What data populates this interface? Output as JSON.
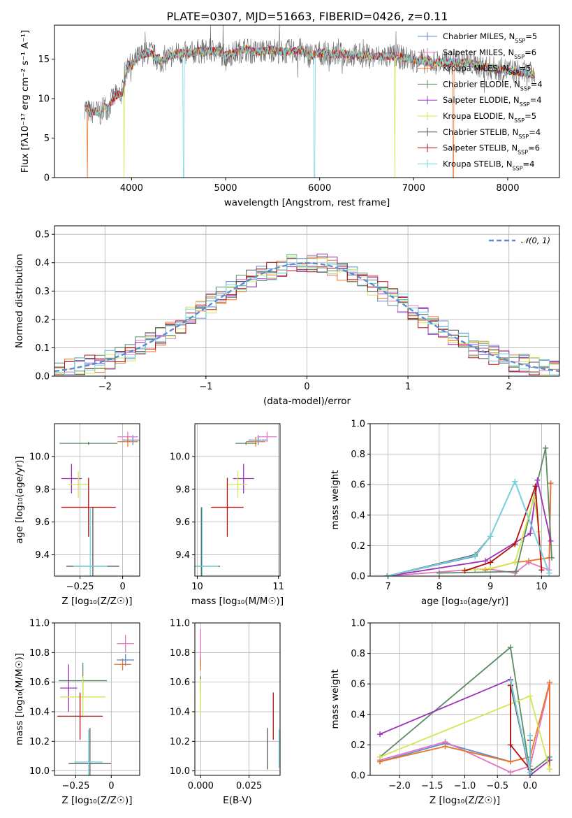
{
  "title": "PLATE=0307, MJD=51663, FIBERID=0426, z=0.11",
  "colors": {
    "Chabrier MILES": "#5b8bd0",
    "Salpeter MILES": "#e377c2",
    "Kroupa MILES": "#e8762c",
    "Chabrier ELODIE": "#5b8c63",
    "Salpeter ELODIE": "#9b30b8",
    "Kroupa ELODIE": "#d4e651",
    "Chabrier STELIB": "#555555",
    "Salpeter STELIB": "#b30f0f",
    "Kroupa STELIB": "#72d6dc"
  },
  "chart_data": [
    {
      "id": "spectrum",
      "type": "line",
      "xlabel": "wavelength [Angstrom, rest frame]",
      "ylabel": "Flux [fλ10⁻¹⁷ erg cm⁻² s⁻¹ A⁻¹]",
      "xlim": [
        3180,
        8550
      ],
      "ylim": [
        0,
        19.3
      ],
      "xticks": [
        4000,
        5000,
        6000,
        7000,
        8000
      ],
      "yticks": [
        0,
        5,
        10,
        15
      ],
      "grid": false,
      "legend_position": "right",
      "legend": [
        "Chabrier MILES, N_SSP=5",
        "Salpeter MILES, N_SSP=6",
        "Kroupa MILES, N_SSP=5",
        "Chabrier ELODIE, N_SSP=4",
        "Salpeter ELODIE, N_SSP=4",
        "Kroupa ELODIE, N_SSP=5",
        "Chabrier STELIB, N_SSP=4",
        "Salpeter STELIB, N_SSP=6",
        "Kroupa STELIB, N_SSP=4"
      ],
      "data_x": [
        3500,
        3560,
        3620,
        3680,
        3700,
        3750,
        3800,
        3850,
        3900,
        3960,
        4000,
        4050,
        4100,
        4200,
        4300,
        4400,
        4500,
        4600,
        4700,
        4800,
        4900,
        5000,
        5100,
        5200,
        5300,
        5400,
        5500,
        5600,
        5700,
        5800,
        5900,
        6000,
        6200,
        6400,
        6600,
        6800,
        7000,
        7200,
        7400,
        7600,
        7800,
        8000,
        8200,
        8290
      ],
      "data_y": [
        9.0,
        8.2,
        8.4,
        8.0,
        9.2,
        8.7,
        10.0,
        10.5,
        10.7,
        14.4,
        14.0,
        15.0,
        15.5,
        15.9,
        14.7,
        15.3,
        15.8,
        15.6,
        16.0,
        16.0,
        16.1,
        15.5,
        15.8,
        16.3,
        15.9,
        16.0,
        16.2,
        15.9,
        16.0,
        16.1,
        15.4,
        15.8,
        15.6,
        15.5,
        15.3,
        15.4,
        14.9,
        14.6,
        14.6,
        14.5,
        13.9,
        13.6,
        13.2,
        13.0
      ],
      "dips": [
        {
          "series": "Kroupa MILES",
          "x": 3530
        },
        {
          "series": "Kroupa ELODIE",
          "x": 3920
        },
        {
          "series": "Kroupa STELIB",
          "x": 4555
        },
        {
          "series": "Kroupa STELIB",
          "x": 5945
        },
        {
          "series": "Kroupa ELODIE",
          "x": 6800
        },
        {
          "series": "Kroupa MILES",
          "x": 7420
        }
      ]
    },
    {
      "id": "residuals",
      "type": "line",
      "xlabel": "(data-model)/error",
      "ylabel": "Normed distribution",
      "xlim": [
        -2.5,
        2.5
      ],
      "ylim": [
        0,
        0.53
      ],
      "xticks": [
        -2,
        -1,
        0,
        1,
        2
      ],
      "yticks": [
        0.0,
        0.1,
        0.2,
        0.3,
        0.4,
        0.5
      ],
      "grid": true,
      "legend_position": "top-right",
      "legend": [
        "𝒩(0, 1)"
      ],
      "bins": {
        "start": -2.5,
        "width": 0.1,
        "count": 50
      },
      "reference_curve": {
        "name": "𝒩(0, 1)",
        "mean": 0,
        "sigma": 1,
        "style": "dashed"
      }
    },
    {
      "id": "age_vs_Z",
      "type": "scatter",
      "xlabel": "Z [log₁₀(Z/Z☉)]",
      "ylabel": "age  [log₁₀(age/yr)]",
      "xlim": [
        -0.4,
        0.1
      ],
      "ylim": [
        9.27,
        10.2
      ],
      "xticks": [
        -0.25,
        0.0
      ],
      "yticks": [
        9.4,
        9.6,
        9.8,
        10.0
      ],
      "grid": true,
      "points": [
        {
          "series": "Chabrier MILES",
          "x": 0.06,
          "y": 10.1,
          "xerr": 0.06,
          "yerr": 0.03
        },
        {
          "series": "Salpeter MILES",
          "x": 0.03,
          "y": 10.12,
          "xerr": 0.06,
          "yerr": 0.03
        },
        {
          "series": "Kroupa MILES",
          "x": 0.03,
          "y": 10.09,
          "xerr": 0.06,
          "yerr": 0.03
        },
        {
          "series": "Chabrier ELODIE",
          "x": -0.2,
          "y": 10.08,
          "xerr": 0.17,
          "yerr": 0.01
        },
        {
          "series": "Salpeter ELODIE",
          "x": -0.3,
          "y": 9.865,
          "xerr": 0.06,
          "yerr": 0.09
        },
        {
          "series": "Kroupa ELODIE",
          "x": -0.26,
          "y": 9.83,
          "xerr": 0.06,
          "yerr": 0.08
        },
        {
          "series": "Chabrier STELIB",
          "x": -0.175,
          "y": 9.33,
          "xerr": 0.155,
          "yerr": 0.36
        },
        {
          "series": "Salpeter STELIB",
          "x": -0.2,
          "y": 9.69,
          "xerr": 0.16,
          "yerr": 0.18
        },
        {
          "series": "Kroupa STELIB",
          "x": -0.19,
          "y": 9.33,
          "xerr": 0.1,
          "yerr": 0.36
        }
      ]
    },
    {
      "id": "age_vs_mass",
      "type": "scatter",
      "xlabel": "mass [log₁₀(M/M☉)]",
      "ylabel": "",
      "xlim": [
        9.97,
        11.02
      ],
      "ylim": [
        9.27,
        10.2
      ],
      "xticks": [
        10,
        11
      ],
      "yticks": [
        9.4,
        9.6,
        9.8,
        10.0
      ],
      "grid": true,
      "points": [
        {
          "series": "Chabrier MILES",
          "x": 10.75,
          "y": 10.1,
          "xerr": 0.12,
          "yerr": 0.03
        },
        {
          "series": "Salpeter MILES",
          "x": 10.86,
          "y": 10.12,
          "xerr": 0.12,
          "yerr": 0.03
        },
        {
          "series": "Kroupa MILES",
          "x": 10.72,
          "y": 10.09,
          "xerr": 0.12,
          "yerr": 0.03
        },
        {
          "series": "Chabrier ELODIE",
          "x": 10.6,
          "y": 10.08,
          "xerr": 0.13,
          "yerr": 0.01
        },
        {
          "series": "Salpeter ELODIE",
          "x": 10.57,
          "y": 9.865,
          "xerr": 0.13,
          "yerr": 0.09
        },
        {
          "series": "Kroupa ELODIE",
          "x": 10.5,
          "y": 9.83,
          "xerr": 0.12,
          "yerr": 0.08
        },
        {
          "series": "Chabrier STELIB",
          "x": 10.05,
          "y": 9.33,
          "xerr": 0.23,
          "yerr": 0.36
        },
        {
          "series": "Salpeter STELIB",
          "x": 10.37,
          "y": 9.69,
          "xerr": 0.2,
          "yerr": 0.18
        },
        {
          "series": "Kroupa STELIB",
          "x": 10.06,
          "y": 9.33,
          "xerr": 0.2,
          "yerr": 0.36
        }
      ]
    },
    {
      "id": "weight_vs_age",
      "type": "line",
      "xlabel": "age  [log₁₀(age/yr)]",
      "ylabel": "mass weight",
      "xlim": [
        6.65,
        10.35
      ],
      "ylim": [
        0,
        1.0
      ],
      "xticks": [
        7,
        8,
        9,
        10
      ],
      "yticks": [
        0.0,
        0.2,
        0.4,
        0.6,
        0.8,
        1.0
      ],
      "grid": true,
      "series": [
        {
          "name": "Chabrier MILES",
          "x": [
            6.98,
            8.7,
            9.0,
            9.48,
            10.15
          ],
          "y": [
            0.0,
            0.13,
            0.26,
            0.62,
            0.02
          ]
        },
        {
          "name": "Salpeter MILES",
          "x": [
            6.98,
            8.7,
            9.0,
            9.48,
            9.75,
            10.15,
            10.18
          ],
          "y": [
            0.0,
            0.045,
            0.045,
            0.02,
            0.09,
            0.04,
            0.61
          ]
        },
        {
          "name": "Kroupa MILES",
          "x": [
            8.9,
            9.48,
            9.75,
            10.15,
            10.18
          ],
          "y": [
            0.04,
            0.09,
            0.1,
            0.12,
            0.61
          ]
        },
        {
          "name": "Chabrier ELODIE",
          "x": [
            8.0,
            9.5,
            10.08,
            10.2
          ],
          "y": [
            0.02,
            0.03,
            0.84,
            0.12
          ]
        },
        {
          "name": "Salpeter ELODIE",
          "x": [
            6.98,
            8.9,
            9.78,
            9.92,
            10.18
          ],
          "y": [
            0.0,
            0.1,
            0.28,
            0.63,
            0.23
          ]
        },
        {
          "name": "Kroupa ELODIE",
          "x": [
            8.5,
            9.0,
            9.48,
            9.86,
            9.95
          ],
          "y": [
            0.04,
            0.05,
            0.09,
            0.52,
            0.29
          ]
        },
        {
          "name": "Chabrier STELIB",
          "x": [
            6.98,
            8.7,
            9.0
          ],
          "y": [
            0.0,
            0.14,
            0.26
          ]
        },
        {
          "name": "Salpeter STELIB",
          "x": [
            8.5,
            9.0,
            9.48,
            9.88,
            10.0
          ],
          "y": [
            0.035,
            0.09,
            0.21,
            0.59,
            0.04
          ]
        },
        {
          "name": "Kroupa STELIB",
          "x": [
            6.98,
            8.7,
            9.0,
            9.48,
            10.15
          ],
          "y": [
            0.0,
            0.135,
            0.26,
            0.62,
            0.02
          ]
        }
      ]
    },
    {
      "id": "mass_vs_Z",
      "type": "scatter",
      "xlabel": "Z [log₁₀(Z/Z☉)]",
      "ylabel": "mass [log₁₀(M/M☉)]",
      "xlim": [
        -0.4,
        0.2
      ],
      "ylim": [
        9.97,
        11.0
      ],
      "xticks": [
        -0.25,
        0.0
      ],
      "yticks": [
        10.0,
        10.2,
        10.4,
        10.6,
        10.8,
        11.0
      ],
      "grid": true,
      "points": [
        {
          "series": "Chabrier MILES",
          "x": 0.1,
          "y": 10.75,
          "xerr": 0.06,
          "yerr": 0.04
        },
        {
          "series": "Salpeter MILES",
          "x": 0.1,
          "y": 10.86,
          "xerr": 0.06,
          "yerr": 0.06
        },
        {
          "series": "Kroupa MILES",
          "x": 0.08,
          "y": 10.72,
          "xerr": 0.06,
          "yerr": 0.04
        },
        {
          "series": "Chabrier ELODIE",
          "x": -0.2,
          "y": 10.61,
          "xerr": 0.17,
          "yerr": 0.12
        },
        {
          "series": "Salpeter ELODIE",
          "x": -0.3,
          "y": 10.56,
          "xerr": 0.06,
          "yerr": 0.16
        },
        {
          "series": "Kroupa ELODIE",
          "x": -0.2,
          "y": 10.5,
          "xerr": 0.16,
          "yerr": 0.14
        },
        {
          "series": "Chabrier STELIB",
          "x": -0.15,
          "y": 10.05,
          "xerr": 0.15,
          "yerr": 0.24
        },
        {
          "series": "Salpeter STELIB",
          "x": -0.22,
          "y": 10.37,
          "xerr": 0.16,
          "yerr": 0.16
        },
        {
          "series": "Kroupa STELIB",
          "x": -0.16,
          "y": 10.06,
          "xerr": 0.1,
          "yerr": 0.22
        }
      ]
    },
    {
      "id": "mass_vs_ebv",
      "type": "scatter",
      "xlabel": "E(B-V)",
      "ylabel": "",
      "xlim": [
        -0.003,
        0.041
      ],
      "ylim": [
        9.97,
        11.0
      ],
      "xticks": [
        0.0,
        0.025
      ],
      "xticklabels": [
        "0.000",
        "0.025"
      ],
      "yticks": [
        10.0,
        10.2,
        10.4,
        10.6,
        10.8,
        11.0
      ],
      "grid": true,
      "points": [
        {
          "series": "Chabrier MILES",
          "x": 0.0,
          "y": 10.75,
          "xerr": 0.0,
          "yerr": 0.04
        },
        {
          "series": "Salpeter MILES",
          "x": 0.0,
          "y": 10.86,
          "xerr": 0.0,
          "yerr": 0.1
        },
        {
          "series": "Kroupa MILES",
          "x": 0.0,
          "y": 10.72,
          "xerr": 0.0,
          "yerr": 0.04
        },
        {
          "series": "Chabrier ELODIE",
          "x": 0.0,
          "y": 10.61,
          "xerr": 0.0,
          "yerr": 0.03
        },
        {
          "series": "Salpeter ELODIE",
          "x": 0.0,
          "y": 10.56,
          "xerr": 0.0,
          "yerr": 0.03
        },
        {
          "series": "Kroupa ELODIE",
          "x": 0.0,
          "y": 10.5,
          "xerr": 0.0,
          "yerr": 0.12
        },
        {
          "series": "Chabrier STELIB",
          "x": 0.0345,
          "y": 10.15,
          "xerr": 0.0,
          "yerr": 0.14
        },
        {
          "series": "Salpeter STELIB",
          "x": 0.0375,
          "y": 10.37,
          "xerr": 0.0,
          "yerr": 0.16
        },
        {
          "series": "Kroupa STELIB",
          "x": 0.0405,
          "y": 10.15,
          "xerr": 0.0,
          "yerr": 0.13
        }
      ]
    },
    {
      "id": "weight_vs_Z",
      "type": "line",
      "xlabel": "Z [log₁₀(Z/Z☉)]",
      "ylabel": "mass weight",
      "xlim": [
        -2.45,
        0.45
      ],
      "ylim": [
        0,
        1.0
      ],
      "xticks": [
        -2.0,
        -1.5,
        -1.0,
        -0.5,
        0.0
      ],
      "xticklabels": [
        "−2.0",
        "−1.5",
        "−1.0",
        "−0.5",
        "0.0"
      ],
      "yticks": [
        0.0,
        0.2,
        0.4,
        0.6,
        0.8,
        1.0
      ],
      "grid": true,
      "series": [
        {
          "name": "Chabrier MILES",
          "x": [
            -2.3,
            -1.3,
            -0.3,
            -0.3,
            0.0
          ],
          "y": [
            0.09,
            0.21,
            0.09,
            0.62,
            0.02
          ]
        },
        {
          "name": "Salpeter MILES",
          "x": [
            -2.3,
            -1.3,
            -0.3,
            0.0,
            0.3,
            0.3
          ],
          "y": [
            0.1,
            0.22,
            0.02,
            0.06,
            0.6,
            0.04
          ]
        },
        {
          "name": "Kroupa MILES",
          "x": [
            -2.3,
            -1.3,
            -0.3,
            0.0,
            0.3,
            0.3
          ],
          "y": [
            0.09,
            0.19,
            0.09,
            0.12,
            0.61,
            0.04
          ]
        },
        {
          "name": "Chabrier ELODIE",
          "x": [
            -2.3,
            -0.3,
            0.0,
            0.3
          ],
          "y": [
            0.12,
            0.84,
            0.02,
            0.12
          ]
        },
        {
          "name": "Salpeter ELODIE",
          "x": [
            -2.3,
            -0.3,
            0.0,
            0.3
          ],
          "y": [
            0.27,
            0.63,
            0.0,
            0.1
          ]
        },
        {
          "name": "Kroupa ELODIE",
          "x": [
            -2.3,
            0.0,
            0.3,
            0.3
          ],
          "y": [
            0.12,
            0.52,
            0.04,
            0.04
          ]
        },
        {
          "name": "Chabrier STELIB",
          "x": [
            -0.3,
            0.0,
            0.0
          ],
          "y": [
            0.59,
            0.02,
            0.26
          ]
        },
        {
          "name": "Salpeter STELIB",
          "x": [
            -0.3,
            -0.3,
            0.0,
            0.0
          ],
          "y": [
            0.59,
            0.2,
            0.04,
            0.23
          ]
        },
        {
          "name": "Kroupa STELIB",
          "x": [
            -0.3,
            0.0,
            0.0
          ],
          "y": [
            0.62,
            0.02,
            0.26
          ]
        }
      ]
    }
  ]
}
